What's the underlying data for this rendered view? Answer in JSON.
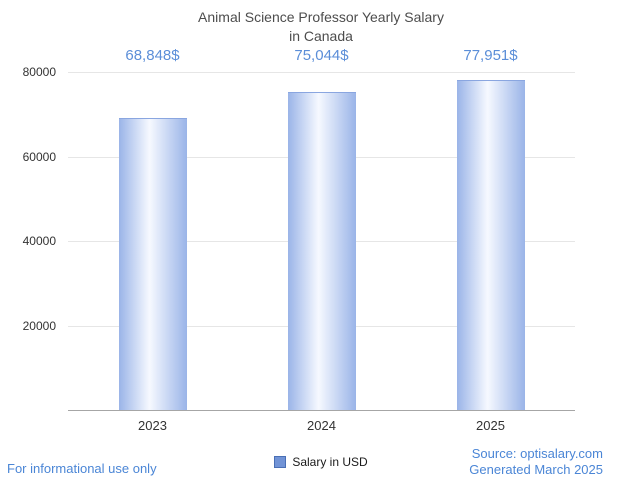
{
  "title": {
    "line1": "Animal Science Professor Yearly Salary",
    "line2": "in Canada"
  },
  "chart_data": {
    "type": "bar",
    "title": "Animal Science Professor Yearly Salary in Canada",
    "categories": [
      "2023",
      "2024",
      "2025"
    ],
    "values": [
      68848,
      75044,
      77951
    ],
    "value_labels": [
      "68,848$",
      "75,044$",
      "77,951$"
    ],
    "ylim": [
      0,
      80000
    ],
    "yticks": [
      20000,
      40000,
      60000,
      80000
    ],
    "grid": true,
    "legend": [
      "Salary in USD"
    ],
    "legend_position": "bottom",
    "colors": {
      "bar_edge": "#9ab4e8",
      "bar_center": "#f6f9ff",
      "value_label": "#5b8ed8",
      "axis": "#a6a6a6",
      "gridline": "#e6e6e6"
    }
  },
  "legend": {
    "label": "Salary in USD"
  },
  "footer": {
    "disclaimer": "For informational use only",
    "source": "Source: optisalary.com",
    "generated": "Generated March 2025"
  }
}
